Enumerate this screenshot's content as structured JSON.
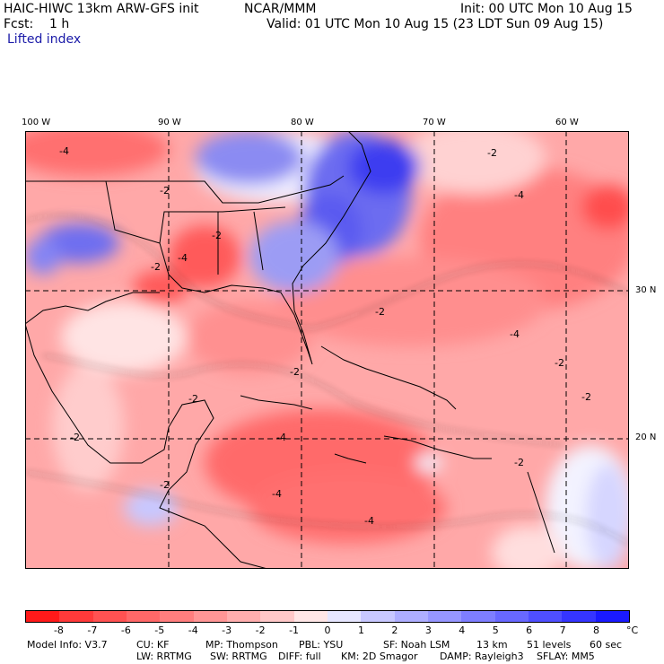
{
  "header": {
    "model": "HAIC-HIWC 13km ARW-GFS init",
    "org": "NCAR/MMM",
    "init": "Init: 00 UTC Mon 10 Aug 15",
    "fcst": "Fcst:    1 h",
    "valid": "Valid: 01 UTC Mon 10 Aug 15 (23 LDT Sun 09 Aug 15)",
    "field": "Lifted index"
  },
  "map": {
    "lon_labels": [
      "100 W",
      "90 W",
      "80 W",
      "70 W",
      "60 W"
    ],
    "lat_labels": [
      "30 N",
      "20 N"
    ],
    "contour_labels": [
      "-4",
      "-2",
      "-2",
      "-4",
      "-2",
      "-4",
      "-2",
      "-2",
      "-4",
      "-2",
      "-4",
      "-2",
      "-2",
      "-2",
      "-2",
      "-4",
      "-4",
      "-2",
      "-2"
    ]
  },
  "colorbar": {
    "ticks": [
      "-8",
      "-7",
      "-6",
      "-5",
      "-4",
      "-3",
      "-2",
      "-1",
      "0",
      "1",
      "2",
      "3",
      "4",
      "5",
      "6",
      "7",
      "8"
    ],
    "unit": "°C",
    "colors": [
      "#ff1a1a",
      "#ff3a3a",
      "#ff5252",
      "#ff6868",
      "#ff7e7e",
      "#ff9696",
      "#ffaeae",
      "#ffc8c8",
      "#ffe6e6",
      "#e6e6ff",
      "#c8c8ff",
      "#aeaeff",
      "#9696ff",
      "#7e7eff",
      "#6868ff",
      "#4f4fff",
      "#3535ff",
      "#1a1aff"
    ]
  },
  "model_info": {
    "line1": [
      "Model Info: V3.7",
      "CU: KF",
      "MP: Thompson",
      "PBL: YSU",
      "SF: Noah LSM",
      "13 km",
      "51 levels",
      "60 sec"
    ],
    "line2": [
      "LW: RRTMG",
      "SW: RRTMG",
      "DIFF: full",
      "KM: 2D Smagor",
      "DAMP: Rayleigh3",
      "SFLAY: MM5"
    ]
  }
}
